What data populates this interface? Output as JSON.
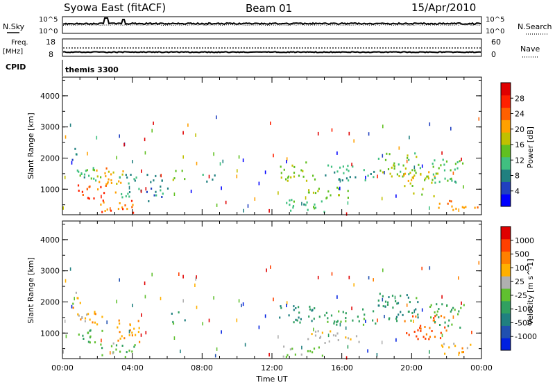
{
  "header": {
    "station": "Syowa East (fitACF)",
    "beam": "Beam 01",
    "date": "15/Apr/2010"
  },
  "nsky_panel": {
    "left_label": "N.Sky",
    "left_ticks": [
      "10^5",
      "10^0"
    ],
    "right_label": "N.Search",
    "right_ticks": [
      "10^5",
      "10^0"
    ]
  },
  "freq_panel": {
    "left_label_top": "Freq.",
    "left_label_bottom": "[MHz]",
    "left_ticks": [
      "18",
      "8"
    ],
    "right_label": "Nave",
    "right_ticks": [
      "60",
      "0"
    ]
  },
  "cpid": {
    "label": "CPID",
    "value": "themis 3300"
  },
  "axes": {
    "ylabel": "Slant Range [km]",
    "yticks": [
      "4000",
      "3000",
      "2000",
      "1000"
    ],
    "xticks": [
      "00:00",
      "04:00",
      "08:00",
      "12:00",
      "16:00",
      "20:00",
      "00:00"
    ],
    "xlabel": "Time UT"
  },
  "power_colorbar": {
    "label": "Power [dB]",
    "ticks": [
      "28",
      "24",
      "20",
      "16",
      "12",
      "8",
      "4"
    ],
    "colors": [
      "#0000ff",
      "#2040c0",
      "#208080",
      "#40c080",
      "#60c020",
      "#c0c000",
      "#ffa000",
      "#ff6000",
      "#ff2000",
      "#e00000"
    ]
  },
  "velocity_colorbar": {
    "label": "Velocity [m s^-1]",
    "ticks": [
      "1000",
      "500",
      "100",
      "25",
      "-25",
      "-100",
      "-500",
      "-1000"
    ],
    "colors": [
      "#0020e0",
      "#2050b0",
      "#208080",
      "#30a060",
      "#60c030",
      "#b0b0b0",
      "#ffb000",
      "#ff8000",
      "#ff4000",
      "#e00000"
    ]
  },
  "chart_data": [
    {
      "type": "heatmap",
      "name": "power",
      "xlabel": "Time UT",
      "ylabel": "Slant Range [km]",
      "xlim_hours": [
        0,
        24
      ],
      "ylim_km": [
        180,
        4600
      ],
      "colorbar_label": "Power [dB]",
      "colorbar_range": [
        0,
        32
      ],
      "patches": [
        {
          "t": [
            0.4,
            0.9
          ],
          "r": [
            1900,
            2400
          ],
          "v": 8
        },
        {
          "t": [
            0.5,
            2.2
          ],
          "r": [
            1300,
            1900
          ],
          "v": 12
        },
        {
          "t": [
            0.8,
            2.4
          ],
          "r": [
            700,
            1200
          ],
          "v": 26
        },
        {
          "t": [
            1.8,
            3.5
          ],
          "r": [
            900,
            1700
          ],
          "v": 20
        },
        {
          "t": [
            2.0,
            4.2
          ],
          "r": [
            250,
            700
          ],
          "v": 24
        },
        {
          "t": [
            3.2,
            4.5
          ],
          "r": [
            700,
            1500
          ],
          "v": 10
        },
        {
          "t": [
            4.8,
            6.0
          ],
          "r": [
            600,
            1500
          ],
          "v": 8
        },
        {
          "t": [
            6.3,
            7.0
          ],
          "r": [
            1300,
            1700
          ],
          "v": 16
        },
        {
          "t": [
            8.0,
            8.8
          ],
          "r": [
            1200,
            1500
          ],
          "v": 10
        },
        {
          "t": [
            12.4,
            14.5
          ],
          "r": [
            1300,
            1900
          ],
          "v": 16
        },
        {
          "t": [
            12.6,
            15.0
          ],
          "r": [
            250,
            700
          ],
          "v": 12
        },
        {
          "t": [
            15.0,
            18.0
          ],
          "r": [
            1300,
            1800
          ],
          "v": 10
        },
        {
          "t": [
            14.0,
            16.5
          ],
          "r": [
            700,
            1100
          ],
          "v": 16
        },
        {
          "t": [
            18.0,
            20.5
          ],
          "r": [
            1400,
            2200
          ],
          "v": 14
        },
        {
          "t": [
            19.5,
            21.5
          ],
          "r": [
            800,
            1600
          ],
          "v": 18
        },
        {
          "t": [
            21.0,
            23.0
          ],
          "r": [
            1200,
            2000
          ],
          "v": 12
        },
        {
          "t": [
            21.5,
            23.8
          ],
          "r": [
            350,
            700
          ],
          "v": 22
        }
      ]
    },
    {
      "type": "heatmap",
      "name": "velocity",
      "xlabel": "Time UT",
      "ylabel": "Slant Range [km]",
      "xlim_hours": [
        0,
        24
      ],
      "ylim_km": [
        180,
        4600
      ],
      "colorbar_label": "Velocity [m s^-1]",
      "colorbar_range": [
        -1000,
        1000
      ],
      "patches": [
        {
          "t": [
            0.4,
            1.0
          ],
          "r": [
            1900,
            2400
          ],
          "v": 120
        },
        {
          "t": [
            0.5,
            2.3
          ],
          "r": [
            1300,
            1900
          ],
          "v": 300
        },
        {
          "t": [
            0.8,
            2.5
          ],
          "r": [
            700,
            1200
          ],
          "v": -200
        },
        {
          "t": [
            2.0,
            4.2
          ],
          "r": [
            250,
            700
          ],
          "v": -150
        },
        {
          "t": [
            3.0,
            4.5
          ],
          "r": [
            700,
            1500
          ],
          "v": 400
        },
        {
          "t": [
            6.2,
            7.0
          ],
          "r": [
            1300,
            1700
          ],
          "v": -300
        },
        {
          "t": [
            12.4,
            15.0
          ],
          "r": [
            1300,
            1900
          ],
          "v": -400
        },
        {
          "t": [
            12.6,
            15.0
          ],
          "r": [
            250,
            600
          ],
          "v": 10
        },
        {
          "t": [
            15.0,
            18.0
          ],
          "r": [
            1300,
            1800
          ],
          "v": -250
        },
        {
          "t": [
            14.0,
            17.0
          ],
          "r": [
            700,
            1100
          ],
          "v": 200
        },
        {
          "t": [
            18.0,
            20.5
          ],
          "r": [
            1400,
            2300
          ],
          "v": -350
        },
        {
          "t": [
            19.5,
            22.0
          ],
          "r": [
            800,
            1600
          ],
          "v": 600
        },
        {
          "t": [
            21.0,
            23.0
          ],
          "r": [
            1200,
            2000
          ],
          "v": -200
        },
        {
          "t": [
            21.5,
            23.8
          ],
          "r": [
            350,
            700
          ],
          "v": 300
        }
      ]
    }
  ]
}
